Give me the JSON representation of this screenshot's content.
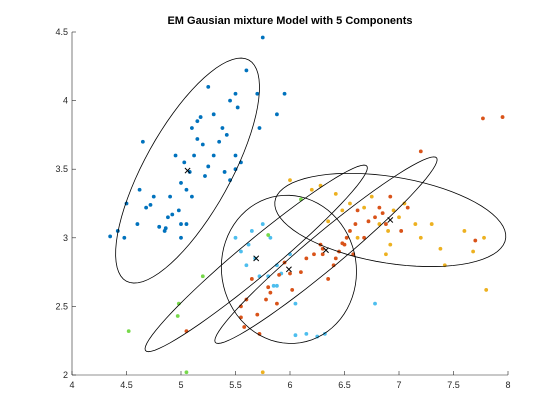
{
  "chart_data": {
    "type": "scatter",
    "title": "EM Gausian mixture Model with 5 Components",
    "xlabel": "",
    "ylabel": "",
    "xlim": [
      4,
      8
    ],
    "ylim": [
      2,
      4.5
    ],
    "xticks": [
      "4",
      "4.5",
      "5",
      "5.5",
      "6",
      "6.5",
      "7",
      "7.5",
      "8"
    ],
    "yticks": [
      "2",
      "2.5",
      "3",
      "3.5",
      "4",
      "4.5"
    ],
    "grid": false,
    "series": [
      {
        "color": "#0072bd",
        "points": [
          [
            4.35,
            3.01
          ],
          [
            4.42,
            3.05
          ],
          [
            4.48,
            3.0
          ],
          [
            4.5,
            3.25
          ],
          [
            4.6,
            3.1
          ],
          [
            4.62,
            3.35
          ],
          [
            4.65,
            3.7
          ],
          [
            4.68,
            3.22
          ],
          [
            4.72,
            3.24
          ],
          [
            4.75,
            3.3
          ],
          [
            4.8,
            3.08
          ],
          [
            4.85,
            3.05
          ],
          [
            4.86,
            3.07
          ],
          [
            4.88,
            3.15
          ],
          [
            4.9,
            3.3
          ],
          [
            4.92,
            3.17
          ],
          [
            4.95,
            3.6
          ],
          [
            4.98,
            3.2
          ],
          [
            5.0,
            3.0
          ],
          [
            5.0,
            3.4
          ],
          [
            5.0,
            3.1
          ],
          [
            5.03,
            3.55
          ],
          [
            5.05,
            3.35
          ],
          [
            5.05,
            3.1
          ],
          [
            5.08,
            3.48
          ],
          [
            5.1,
            3.3
          ],
          [
            5.1,
            3.8
          ],
          [
            5.12,
            3.6
          ],
          [
            5.15,
            3.85
          ],
          [
            5.15,
            3.72
          ],
          [
            5.18,
            3.88
          ],
          [
            5.2,
            3.68
          ],
          [
            5.22,
            3.45
          ],
          [
            5.25,
            4.1
          ],
          [
            5.25,
            3.52
          ],
          [
            5.3,
            3.6
          ],
          [
            5.3,
            3.9
          ],
          [
            5.35,
            3.7
          ],
          [
            5.38,
            3.8
          ],
          [
            5.4,
            3.48
          ],
          [
            5.42,
            3.75
          ],
          [
            5.45,
            4.0
          ],
          [
            5.5,
            4.05
          ],
          [
            5.5,
            3.6
          ],
          [
            5.5,
            3.5
          ],
          [
            5.52,
            3.95
          ],
          [
            5.55,
            3.55
          ],
          [
            5.6,
            4.22
          ],
          [
            5.7,
            4.05
          ],
          [
            5.72,
            3.8
          ],
          [
            5.75,
            4.46
          ],
          [
            5.88,
            3.9
          ],
          [
            5.95,
            4.05
          ],
          [
            5.45,
            3.42
          ]
        ]
      },
      {
        "color": "#4dbeee",
        "points": [
          [
            5.5,
            3.0
          ],
          [
            5.55,
            2.9
          ],
          [
            5.6,
            2.8
          ],
          [
            5.62,
            2.95
          ],
          [
            5.65,
            3.05
          ],
          [
            5.68,
            2.85
          ],
          [
            5.72,
            2.72
          ],
          [
            5.75,
            3.1
          ],
          [
            5.8,
            2.72
          ],
          [
            5.82,
            3.0
          ],
          [
            5.85,
            2.65
          ],
          [
            5.88,
            2.8
          ],
          [
            6.0,
            2.88
          ],
          [
            6.05,
            2.29
          ],
          [
            6.15,
            2.3
          ],
          [
            6.25,
            2.28
          ],
          [
            6.32,
            2.3
          ],
          [
            6.05,
            2.52
          ],
          [
            5.88,
            2.65
          ],
          [
            5.92,
            2.74
          ],
          [
            6.78,
            2.52
          ]
        ]
      },
      {
        "color": "#d95319",
        "points": [
          [
            5.05,
            2.32
          ],
          [
            5.55,
            2.5
          ],
          [
            5.55,
            2.42
          ],
          [
            5.58,
            2.35
          ],
          [
            5.6,
            2.55
          ],
          [
            5.65,
            2.7
          ],
          [
            5.7,
            2.44
          ],
          [
            5.72,
            2.3
          ],
          [
            5.78,
            2.55
          ],
          [
            5.8,
            2.64
          ],
          [
            5.82,
            2.6
          ],
          [
            5.88,
            2.52
          ],
          [
            5.9,
            2.73
          ],
          [
            5.95,
            2.82
          ],
          [
            6.0,
            2.74
          ],
          [
            6.02,
            2.62
          ],
          [
            6.1,
            2.75
          ],
          [
            6.15,
            2.85
          ],
          [
            6.22,
            2.88
          ],
          [
            6.28,
            2.95
          ],
          [
            6.3,
            2.92
          ],
          [
            6.35,
            2.7
          ],
          [
            6.4,
            2.8
          ],
          [
            6.42,
            2.85
          ],
          [
            6.45,
            2.9
          ],
          [
            6.5,
            2.95
          ],
          [
            6.52,
            3.0
          ],
          [
            6.55,
            3.05
          ],
          [
            6.58,
            2.88
          ],
          [
            6.6,
            3.1
          ],
          [
            6.62,
            3.2
          ],
          [
            6.68,
            3.0
          ],
          [
            6.72,
            3.12
          ],
          [
            6.78,
            3.15
          ],
          [
            6.82,
            3.22
          ],
          [
            6.85,
            3.18
          ],
          [
            6.88,
            3.1
          ],
          [
            6.92,
            3.3
          ],
          [
            7.02,
            3.05
          ],
          [
            7.08,
            3.22
          ],
          [
            7.2,
            3.63
          ],
          [
            7.7,
            2.98
          ],
          [
            7.77,
            3.87
          ],
          [
            7.95,
            3.88
          ],
          [
            6.3,
            2.88
          ],
          [
            6.48,
            2.96
          ]
        ]
      },
      {
        "color": "#edb120",
        "points": [
          [
            6.0,
            3.42
          ],
          [
            6.28,
            3.38
          ],
          [
            6.35,
            3.12
          ],
          [
            6.42,
            3.32
          ],
          [
            6.48,
            3.2
          ],
          [
            6.55,
            3.25
          ],
          [
            6.62,
            3.0
          ],
          [
            6.68,
            3.22
          ],
          [
            6.75,
            3.3
          ],
          [
            6.82,
            3.1
          ],
          [
            6.9,
            3.05
          ],
          [
            6.95,
            3.2
          ],
          [
            7.0,
            3.15
          ],
          [
            7.05,
            3.25
          ],
          [
            7.15,
            3.1
          ],
          [
            7.2,
            3.0
          ],
          [
            7.3,
            3.1
          ],
          [
            7.38,
            2.92
          ],
          [
            7.42,
            2.8
          ],
          [
            7.6,
            3.05
          ],
          [
            7.68,
            2.9
          ],
          [
            7.78,
            3.0
          ],
          [
            7.8,
            2.62
          ],
          [
            6.88,
            2.88
          ],
          [
            6.92,
            2.95
          ],
          [
            5.75,
            2.02
          ],
          [
            6.2,
            3.35
          ]
        ]
      },
      {
        "color": "#77d94b",
        "points": [
          [
            4.52,
            2.32
          ],
          [
            4.98,
            2.52
          ],
          [
            4.97,
            2.43
          ],
          [
            5.2,
            2.72
          ],
          [
            5.05,
            2.02
          ],
          [
            5.8,
            3.02
          ],
          [
            6.1,
            3.28
          ]
        ]
      }
    ],
    "components": [
      {
        "mean": [
          5.06,
          3.49
        ],
        "sd": [
          0.33,
          0.41
        ],
        "corr": 0.74
      },
      {
        "mean": [
          5.69,
          2.85
        ],
        "sd": [
          0.51,
          0.34
        ],
        "corr": 0.97
      },
      {
        "mean": [
          5.99,
          2.77
        ],
        "sd": [
          0.31,
          0.27
        ],
        "corr": -0.03
      },
      {
        "mean": [
          6.33,
          2.91
        ],
        "sd": [
          0.51,
          0.34
        ],
        "corr": 0.97
      },
      {
        "mean": [
          6.92,
          3.13
        ],
        "sd": [
          0.53,
          0.17
        ],
        "corr": -0.35
      }
    ]
  }
}
